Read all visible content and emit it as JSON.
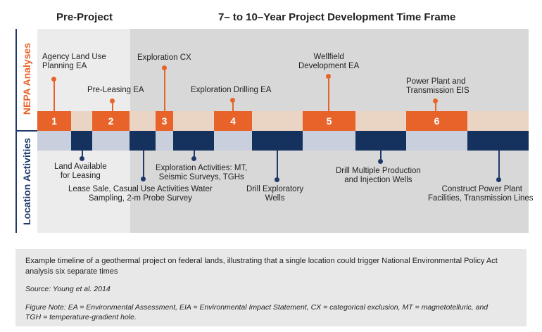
{
  "headers": {
    "pre_project": "Pre-Project",
    "timeframe": "7– to 10–Year Project Development Time Frame"
  },
  "side_labels": {
    "nepa": "NEPA Analyses",
    "location": "Location Activities"
  },
  "nepa_numbers": [
    "1",
    "2",
    "3",
    "4",
    "5",
    "6"
  ],
  "nepa_annotations": {
    "a1_l1": "Agency Land Use",
    "a1_l2": "Planning EA",
    "a2": "Pre-Leasing EA",
    "a3": "Exploration CX",
    "a4": "Exploration Drilling EA",
    "a5_l1": "Wellfield",
    "a5_l2": "Development EA",
    "a6_l1": "Power Plant and",
    "a6_l2": "Transmission EIS"
  },
  "location_annotations": {
    "b1_l1": "Land Available",
    "b1_l2": "for Leasing",
    "b2_l1": "Lease Sale, Casual Use Activities Water",
    "b2_l2": "Sampling, 2-m Probe Survey",
    "b3_l1": "Exploration Activities: MT,",
    "b3_l2": "Seismic Surveys, TGHs",
    "b4_l1": "Drill Exploratory",
    "b4_l2": "Wells",
    "b5_l1": "Drill Multiple Production",
    "b5_l2": "and Injection Wells",
    "b6_l1": "Construct Power Plant",
    "b6_l2": "Facilities, Transmission Lines"
  },
  "caption": {
    "text": "Example timeline of a geothermal project on federal lands, illustrating that a single location could trigger National Environmental Policy Act analysis six separate times",
    "source": "Source: Young et al. 2014",
    "note_l1": "Figure Note: EA = Environmental Assessment, EIA = Environmental Impact Statement, CX = categorical exclusion, MT = magnetotelluric, and",
    "note_l2": "TGH = temperature-gradient hole."
  },
  "colors": {
    "orange": "#e8632a",
    "navy": "#15325f",
    "peach": "#ead4c4",
    "lavender": "#c9cfdc",
    "grey_light": "#ececec",
    "grey_dark": "#d8d8d8",
    "side_text": "#e8632a",
    "side_text_2": "#1f3a6a"
  }
}
